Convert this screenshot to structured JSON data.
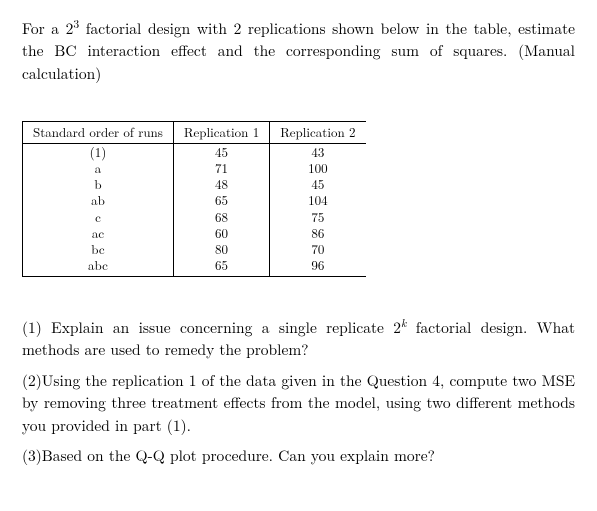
{
  "intro": {
    "part1": "For a 2",
    "exp1": "3",
    "part2": " factorial design with 2 replications shown below in the table, estimate the BC interaction effect and the corresponding sum of squares. (Manual calculation)"
  },
  "table": {
    "headers": [
      "Standard order of runs",
      "Replication 1",
      "Replication 2"
    ],
    "rows": [
      {
        "label": "(1)",
        "r1": "45",
        "r2": "43"
      },
      {
        "label": "a",
        "r1": "71",
        "r2": "100"
      },
      {
        "label": "b",
        "r1": "48",
        "r2": "45"
      },
      {
        "label": "ab",
        "r1": "65",
        "r2": "104"
      },
      {
        "label": "c",
        "r1": "68",
        "r2": "75"
      },
      {
        "label": "ac",
        "r1": "60",
        "r2": "86"
      },
      {
        "label": "bc",
        "r1": "80",
        "r2": "70"
      },
      {
        "label": "abc",
        "r1": "65",
        "r2": "96"
      }
    ]
  },
  "questions": {
    "q1a": "(1) Explain an issue concerning a single replicate 2",
    "q1exp": "k",
    "q1b": " factorial design. What methods are used to remedy the problem?",
    "q2": "(2)Using the replication 1 of the data given in the Question 4, compute two MSE by removing three treatment effects from the model, using two different methods you provided in part (1).",
    "q3": "(3)Based on the Q-Q plot procedure. Can you explain more?"
  }
}
